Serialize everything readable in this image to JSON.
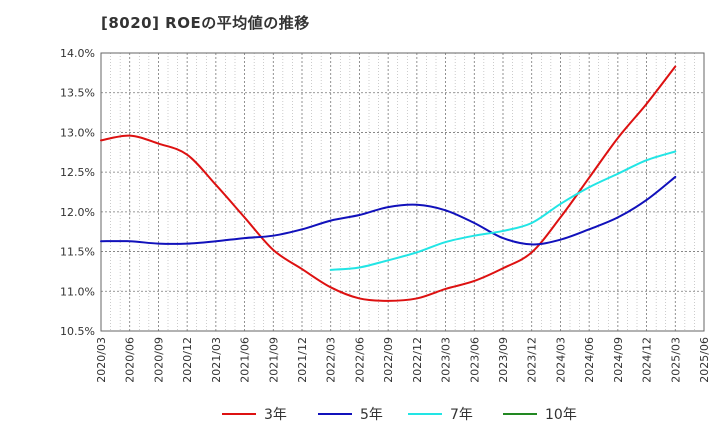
{
  "chart_data": {
    "type": "line",
    "title": "[8020]  ROEの平均値の推移",
    "ylim": [
      10.5,
      14.0
    ],
    "y_ticks": [
      "14.0%",
      "13.5%",
      "13.0%",
      "12.5%",
      "12.0%",
      "11.5%",
      "11.0%",
      "10.5%"
    ],
    "x_ticks": [
      "2020/03",
      "2020/06",
      "2020/09",
      "2020/12",
      "2021/03",
      "2021/06",
      "2021/09",
      "2021/12",
      "2022/03",
      "2022/06",
      "2022/09",
      "2022/12",
      "2023/03",
      "2023/06",
      "2023/09",
      "2023/12",
      "2024/03",
      "2024/06",
      "2024/09",
      "2024/12",
      "2025/03",
      "2025/06"
    ],
    "x": [
      "2020/03",
      "2020/06",
      "2020/09",
      "2020/12",
      "2021/03",
      "2021/06",
      "2021/09",
      "2021/12",
      "2022/03",
      "2022/06",
      "2022/09",
      "2022/12",
      "2023/03",
      "2023/06",
      "2023/09",
      "2023/12",
      "2024/03",
      "2024/06",
      "2024/09",
      "2024/12",
      "2025/03"
    ],
    "series": [
      {
        "name": "3年",
        "color": "#dd1111",
        "values": [
          12.9,
          12.96,
          12.86,
          12.72,
          12.34,
          11.93,
          11.52,
          11.28,
          11.05,
          10.91,
          10.88,
          10.91,
          11.03,
          11.13,
          11.29,
          11.49,
          11.93,
          12.43,
          12.93,
          13.36,
          13.83
        ]
      },
      {
        "name": "5年",
        "color": "#1111bb",
        "values": [
          11.63,
          11.63,
          11.6,
          11.6,
          11.63,
          11.67,
          11.7,
          11.78,
          11.89,
          11.96,
          12.06,
          12.09,
          12.02,
          11.86,
          11.67,
          11.59,
          11.65,
          11.78,
          11.93,
          12.15,
          12.44
        ]
      },
      {
        "name": "7年",
        "color": "#22e5e5",
        "values": [
          null,
          null,
          null,
          null,
          null,
          null,
          null,
          null,
          11.27,
          11.3,
          11.39,
          11.49,
          11.62,
          11.7,
          11.76,
          11.86,
          12.1,
          12.31,
          12.48,
          12.65,
          12.76
        ]
      },
      {
        "name": "10年",
        "color": "#228822",
        "values": [
          null,
          null,
          null,
          null,
          null,
          null,
          null,
          null,
          null,
          null,
          null,
          null,
          null,
          null,
          null,
          null,
          null,
          null,
          null,
          null,
          null
        ]
      }
    ]
  }
}
